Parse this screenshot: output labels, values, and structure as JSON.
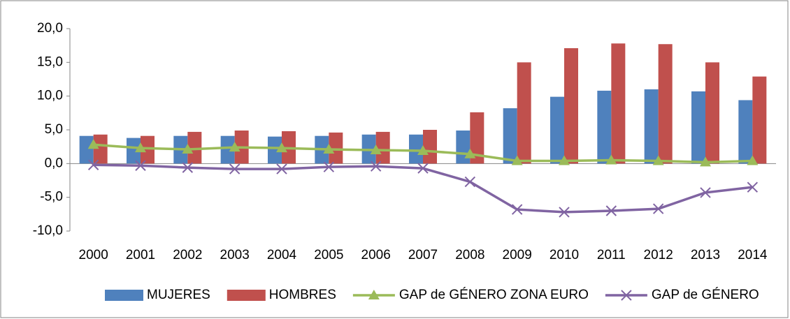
{
  "chart_data": {
    "type": "bar",
    "categories": [
      "2000",
      "2001",
      "2002",
      "2003",
      "2004",
      "2005",
      "2006",
      "2007",
      "2008",
      "2009",
      "2010",
      "2011",
      "2012",
      "2013",
      "2014"
    ],
    "series": [
      {
        "name": "MUJERES",
        "type": "bar",
        "color": "#4f81bd",
        "values": [
          4.1,
          3.8,
          4.1,
          4.1,
          4.0,
          4.1,
          4.3,
          4.3,
          4.9,
          8.2,
          9.9,
          10.8,
          11.0,
          10.7,
          9.4
        ]
      },
      {
        "name": "HOMBRES",
        "type": "bar",
        "color": "#c0504d",
        "values": [
          4.3,
          4.1,
          4.7,
          4.9,
          4.8,
          4.6,
          4.7,
          5.0,
          7.6,
          15.0,
          17.1,
          17.8,
          17.7,
          15.0,
          12.9
        ]
      },
      {
        "name": "GAP de GÉNERO ZONA EURO",
        "type": "line",
        "marker": "triangle",
        "color": "#9bbb59",
        "values": [
          2.8,
          2.3,
          2.1,
          2.4,
          2.3,
          2.1,
          2.0,
          1.9,
          1.4,
          0.4,
          0.4,
          0.5,
          0.4,
          0.2,
          0.4
        ]
      },
      {
        "name": "GAP de GÉNERO",
        "type": "line",
        "marker": "x",
        "color": "#8064a2",
        "values": [
          -0.2,
          -0.3,
          -0.6,
          -0.8,
          -0.8,
          -0.5,
          -0.4,
          -0.7,
          -2.7,
          -6.8,
          -7.2,
          -7.0,
          -6.7,
          -4.3,
          -3.5
        ]
      }
    ],
    "ylim": [
      -10,
      20
    ],
    "yticks": [
      {
        "value": -10,
        "label": "-10,0"
      },
      {
        "value": -5,
        "label": "-5,0"
      },
      {
        "value": 0,
        "label": "0,0"
      },
      {
        "value": 5,
        "label": "5,0"
      },
      {
        "value": 10,
        "label": "10,0"
      },
      {
        "value": 15,
        "label": "15,0"
      },
      {
        "value": 20,
        "label": "20,0"
      }
    ],
    "legend": "bottom"
  }
}
